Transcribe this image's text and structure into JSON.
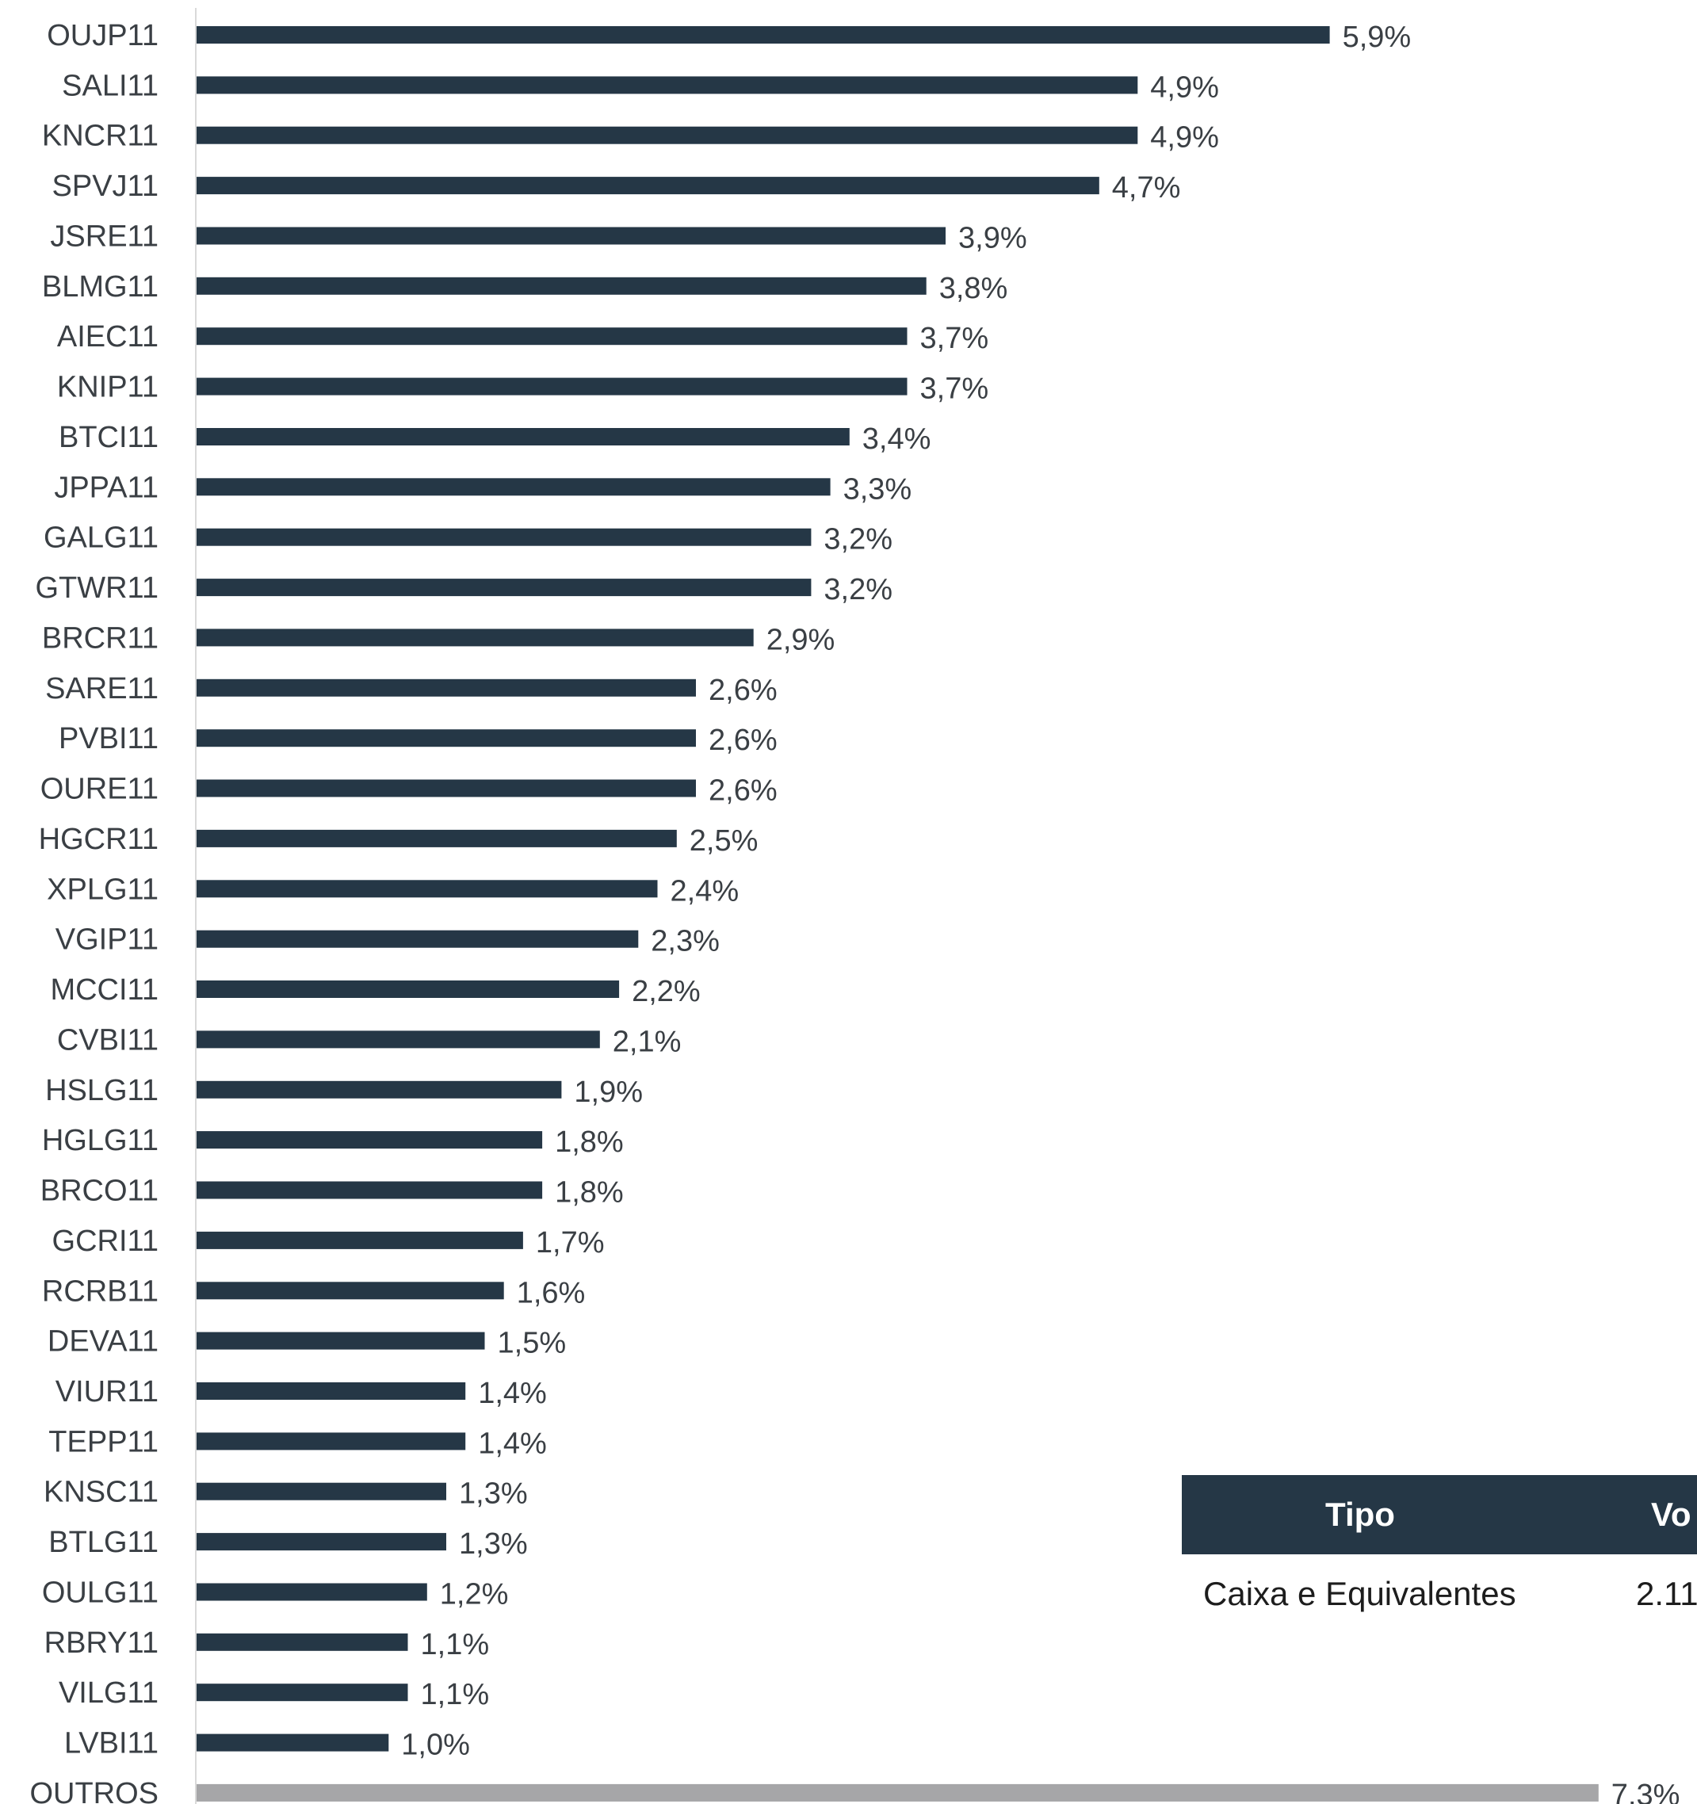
{
  "chart_data": {
    "type": "bar",
    "orientation": "horizontal",
    "categories": [
      "OUJP11",
      "SALI11",
      "KNCR11",
      "SPVJ11",
      "JSRE11",
      "BLMG11",
      "AIEC11",
      "KNIP11",
      "BTCI11",
      "JPPA11",
      "GALG11",
      "GTWR11",
      "BRCR11",
      "SARE11",
      "PVBI11",
      "OURE11",
      "HGCR11",
      "XPLG11",
      "VGIP11",
      "MCCI11",
      "CVBI11",
      "HSLG11",
      "HGLG11",
      "BRCO11",
      "GCRI11",
      "RCRB11",
      "DEVA11",
      "VIUR11",
      "TEPP11",
      "KNSC11",
      "BTLG11",
      "OULG11",
      "RBRY11",
      "VILG11",
      "LVBI11",
      "OUTROS"
    ],
    "values": [
      5.9,
      4.9,
      4.9,
      4.7,
      3.9,
      3.8,
      3.7,
      3.7,
      3.4,
      3.3,
      3.2,
      3.2,
      2.9,
      2.6,
      2.6,
      2.6,
      2.5,
      2.4,
      2.3,
      2.2,
      2.1,
      1.9,
      1.8,
      1.8,
      1.7,
      1.6,
      1.5,
      1.4,
      1.4,
      1.3,
      1.3,
      1.2,
      1.1,
      1.1,
      1.0,
      7.3
    ],
    "value_labels": [
      "5,9%",
      "4,9%",
      "4,9%",
      "4,7%",
      "3,9%",
      "3,8%",
      "3,7%",
      "3,7%",
      "3,4%",
      "3,3%",
      "3,2%",
      "3,2%",
      "2,9%",
      "2,6%",
      "2,6%",
      "2,6%",
      "2,5%",
      "2,4%",
      "2,3%",
      "2,2%",
      "2,1%",
      "1,9%",
      "1,8%",
      "1,8%",
      "1,7%",
      "1,6%",
      "1,5%",
      "1,4%",
      "1,4%",
      "1,3%",
      "1,3%",
      "1,2%",
      "1,1%",
      "1,1%",
      "1,0%",
      "7,3%"
    ],
    "colors": {
      "bar": "#253746",
      "other_bar": "#a6a6a8",
      "label_text": "#3a3f44",
      "axis_line": "#d9d9d9"
    },
    "grid": false,
    "legend": "none",
    "xlabel": "",
    "ylabel": ""
  },
  "table": {
    "headers": [
      "Tipo",
      "Vo"
    ],
    "rows": [
      [
        "Caixa e Equivalentes",
        "2.11"
      ]
    ]
  }
}
